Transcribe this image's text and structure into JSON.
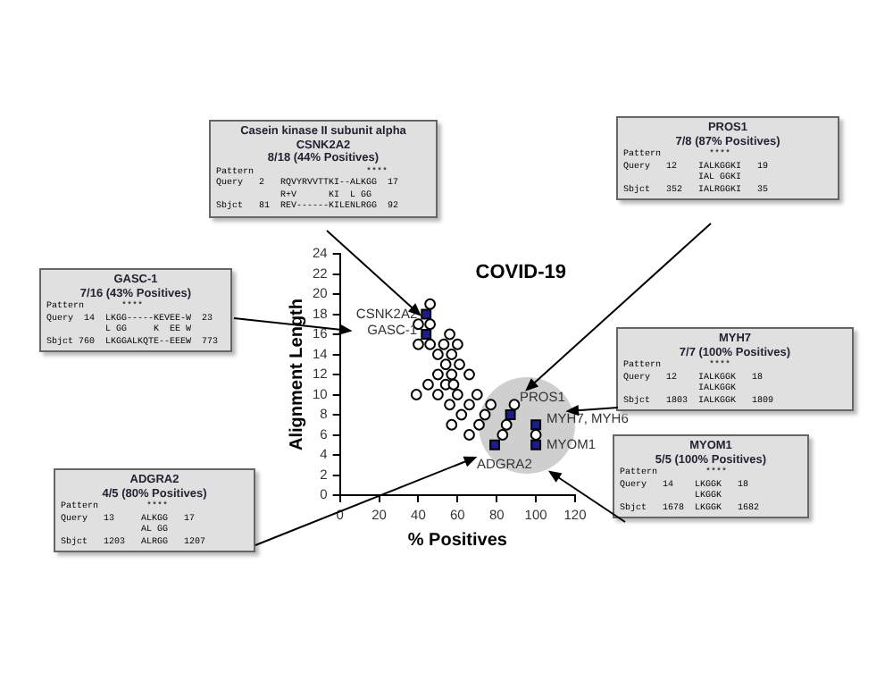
{
  "chart_data": {
    "type": "scatter",
    "title": "COVID-19",
    "xlabel": "% Positives",
    "ylabel": "Alignment Length",
    "xlim": [
      0,
      120
    ],
    "xticks": [
      0,
      20,
      40,
      60,
      80,
      100,
      120
    ],
    "ylim": [
      0,
      24
    ],
    "yticks": [
      0,
      2,
      4,
      6,
      8,
      10,
      12,
      14,
      16,
      18,
      20,
      22,
      24
    ],
    "grid": false,
    "legend": false,
    "series": [
      {
        "color": "#ffffff",
        "marker": "circle",
        "x": [
          46,
          40,
          46,
          56,
          40,
          46,
          53,
          60,
          50,
          57,
          54,
          61,
          50,
          57,
          66,
          45,
          54,
          58,
          39,
          50,
          60,
          70,
          56,
          66,
          77,
          89,
          62,
          74,
          57,
          71,
          85,
          66,
          83,
          100
        ],
        "values": [
          19,
          17,
          17,
          16,
          15,
          15,
          15,
          15,
          14,
          14,
          13,
          13,
          12,
          12,
          12,
          11,
          11,
          11,
          10,
          10,
          10,
          10,
          9,
          9,
          9,
          9,
          8,
          8,
          7,
          7,
          7,
          6,
          6,
          6
        ]
      },
      {
        "color": "#1c1c8a",
        "marker": "square",
        "x": [
          44,
          44,
          87,
          100,
          79,
          100
        ],
        "values": [
          18,
          16,
          8,
          7,
          5,
          5
        ]
      }
    ],
    "annotations": [
      {
        "text": "CSNK2A2",
        "x": 44,
        "y": 18
      },
      {
        "text": "GASC-1",
        "x": 44,
        "y": 16
      },
      {
        "text": "PROS1",
        "x": 89,
        "y": 9
      },
      {
        "text": "MYH7, MYH6",
        "x": 100,
        "y": 7
      },
      {
        "text": "MYOM1",
        "x": 100,
        "y": 5
      },
      {
        "text": "ADGRA2",
        "x": 79,
        "y": 5
      },
      "Casein kinase II subunit alpha\nCSNK2A2\n8/18 (44% Positives)\nPattern                     ****\nQuery   2   RQVYRVVTTKI--ALKGG  17\n            R+V      KI  L GG\nSbjct   81  REV------KILENLRGG  92",
      "GASC-1\n7/16 (43% Positives)\nPattern       ****\nQuery  14  LKGG-----KEVEE-W  23\n           L GG     K  EE W\nSbjct 760  LKGGALKQTE--EEEW  773",
      "ADGRA2\n4/5 (80% Positives)\nPattern         ****\nQuery   13     ALKGG   17\n               AL GG\nSbjct   1203   ALRGG   1207",
      "PROS1\n7/8 (87% Positives)\nPattern         ****\nQuery   12    IALKGGKI   19\n              IAL GGKI\nSbjct   352   IALRGGKI   35",
      "MYH7\n7/7 (100% Positives)\nPattern         ****\nQuery   12    IALKGGK   18\n              IALKGGK\nSbjct   1803  IALKGGK   1809",
      "MYOM1\n5/5 (100% Positives)\nPattern         ****\nQuery   14    LKGGK   18\n              LKGGK\nSbjct   1678  LKGGK   1682"
    ]
  }
}
